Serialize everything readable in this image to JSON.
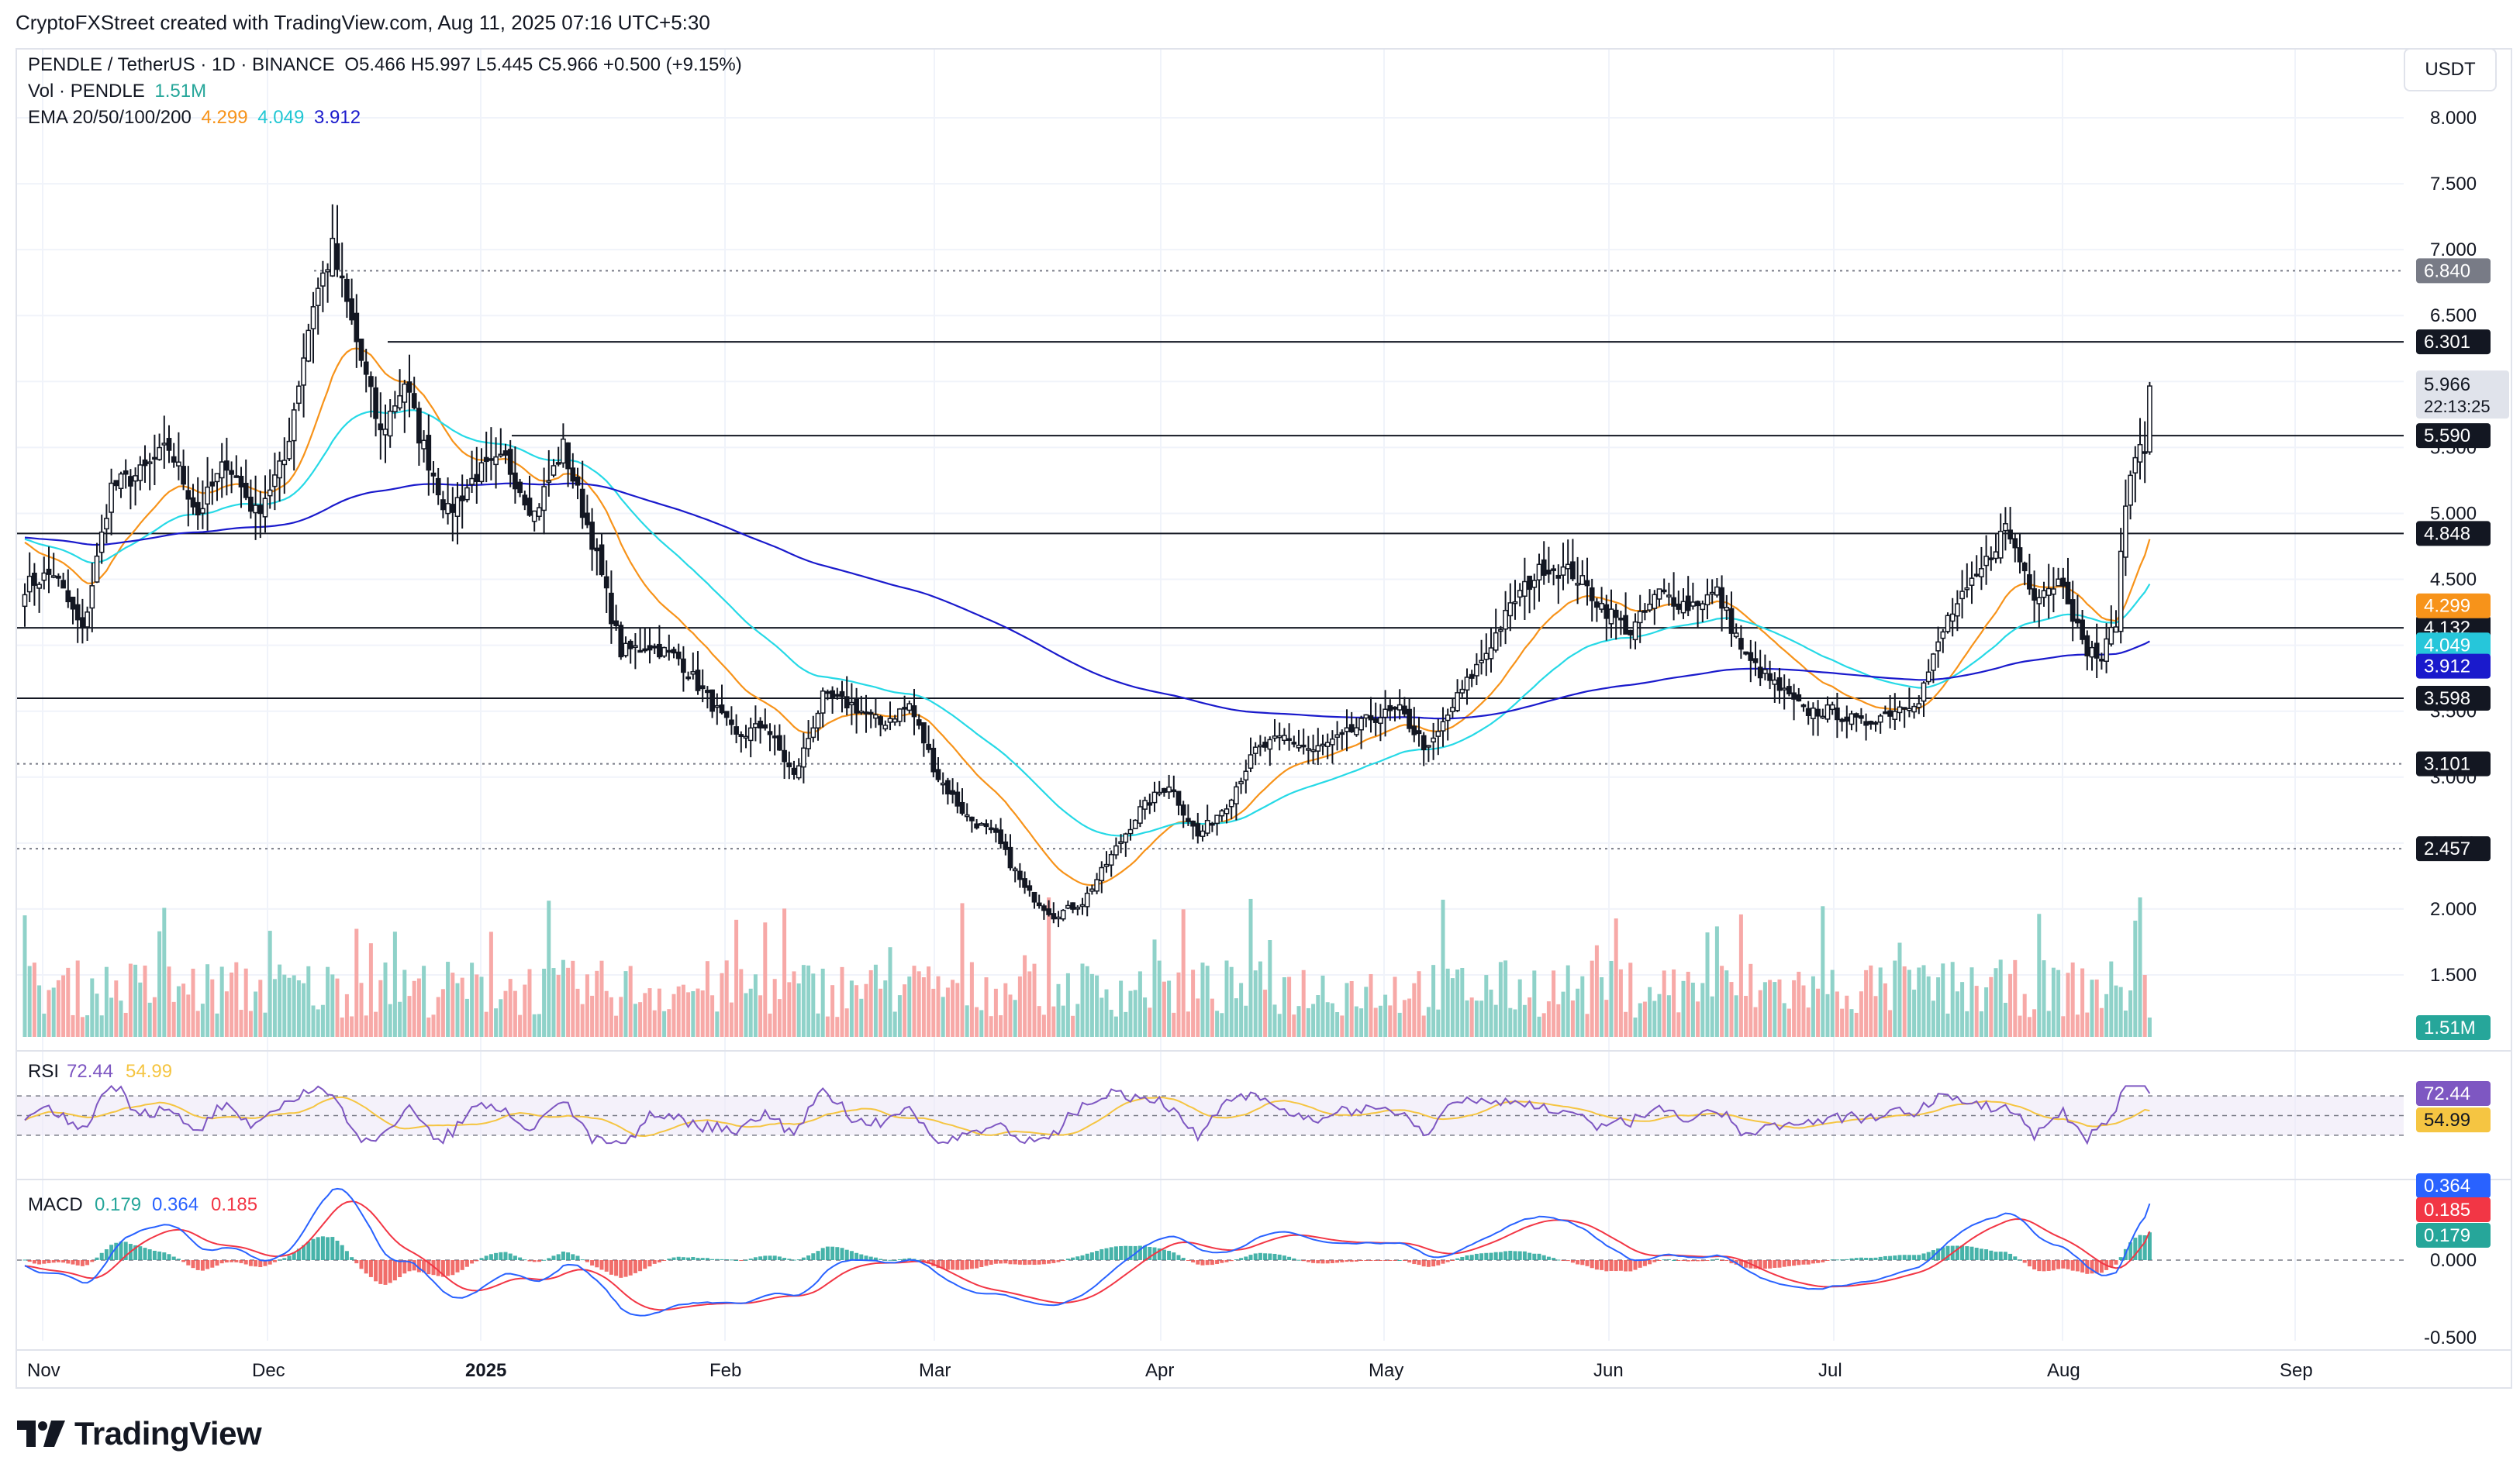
{
  "credit": "CryptoFXStreet created with TradingView.com, Aug 11, 2025 07:16 UTC+5:30",
  "currency_button": "USDT",
  "legend": {
    "title": "PENDLE / TetherUS · 1D · BINANCE",
    "ohlc": "O5.466  H5.997  L5.445  C5.966  +0.500 (+9.15%)",
    "vol_label": "Vol · PENDLE",
    "vol_value": "1.51M",
    "ema_label": "EMA 20/50/100/200",
    "ema20": "4.299",
    "ema50": "4.049",
    "ema200": "3.912"
  },
  "brand": "TradingView",
  "colors": {
    "up": "#26a69a",
    "down": "#ef5350",
    "vol_up": "#8fd2c9",
    "vol_down": "#f7a9a7",
    "ema20": "#f7931a",
    "ema50": "#26d9e6",
    "ema200": "#1a1acc",
    "rsi": "#7e57c2",
    "rsi_ma": "#f5c542",
    "macd": "#2962ff",
    "signal": "#f23645",
    "level_line": "#131722"
  },
  "chart_data": {
    "type": "candlestick",
    "symbol": "PENDLE / TetherUS",
    "timeframe": "1D",
    "exchange": "BINANCE",
    "price_axis_ticks": [
      "8.000",
      "7.500",
      "7.000",
      "6.500",
      "6.000",
      "5.500",
      "5.000",
      "4.500",
      "4.000",
      "3.500",
      "3.000",
      "2.500",
      "2.000",
      "1.500"
    ],
    "x_axis_labels": [
      "Nov",
      "Dec",
      "2025",
      "Feb",
      "Mar",
      "Apr",
      "May",
      "Jun",
      "Jul",
      "Aug",
      "Sep"
    ],
    "horizontal_levels": [
      {
        "value": 6.84,
        "label": "6.840",
        "style": "dotted"
      },
      {
        "value": 6.301,
        "label": "6.301",
        "style": "solid"
      },
      {
        "value": 5.59,
        "label": "5.590",
        "style": "solid"
      },
      {
        "value": 4.848,
        "label": "4.848",
        "style": "solid"
      },
      {
        "value": 4.132,
        "label": "4.132",
        "style": "solid"
      },
      {
        "value": 3.598,
        "label": "3.598",
        "style": "solid"
      },
      {
        "value": 3.101,
        "label": "3.101",
        "style": "dotted"
      },
      {
        "value": 2.457,
        "label": "2.457",
        "style": "dotted"
      }
    ],
    "last_price": {
      "value": 5.966,
      "label": "5.966",
      "countdown": "22:13:25"
    },
    "ema_badges": [
      {
        "name": "EMA 20",
        "value": 4.299,
        "label": "4.299"
      },
      {
        "name": "EMA 50",
        "value": 4.049,
        "label": "4.049"
      },
      {
        "name": "EMA 200",
        "value": 3.912,
        "label": "3.912"
      }
    ],
    "close_anchors": [
      [
        0,
        4.45
      ],
      [
        6,
        4.55
      ],
      [
        12,
        4.1
      ],
      [
        18,
        5.2
      ],
      [
        24,
        5.3
      ],
      [
        30,
        5.5
      ],
      [
        36,
        5.0
      ],
      [
        42,
        5.4
      ],
      [
        48,
        5.0
      ],
      [
        54,
        5.4
      ],
      [
        60,
        6.6
      ],
      [
        64,
        7.0
      ],
      [
        69,
        6.3
      ],
      [
        74,
        5.6
      ],
      [
        79,
        6.0
      ],
      [
        82,
        5.6
      ],
      [
        88,
        5.0
      ],
      [
        94,
        5.3
      ],
      [
        100,
        5.4
      ],
      [
        106,
        5.0
      ],
      [
        112,
        5.5
      ],
      [
        118,
        4.8
      ],
      [
        124,
        3.95
      ],
      [
        130,
        4.0
      ],
      [
        136,
        3.9
      ],
      [
        142,
        3.6
      ],
      [
        148,
        3.3
      ],
      [
        154,
        3.4
      ],
      [
        160,
        3.0
      ],
      [
        166,
        3.6
      ],
      [
        172,
        3.55
      ],
      [
        178,
        3.4
      ],
      [
        184,
        3.55
      ],
      [
        190,
        3.0
      ],
      [
        196,
        2.7
      ],
      [
        202,
        2.55
      ],
      [
        208,
        2.15
      ],
      [
        214,
        1.95
      ],
      [
        220,
        2.05
      ],
      [
        226,
        2.4
      ],
      [
        232,
        2.75
      ],
      [
        238,
        2.95
      ],
      [
        244,
        2.55
      ],
      [
        250,
        2.8
      ],
      [
        256,
        3.2
      ],
      [
        262,
        3.3
      ],
      [
        268,
        3.2
      ],
      [
        274,
        3.3
      ],
      [
        280,
        3.45
      ],
      [
        286,
        3.5
      ],
      [
        292,
        3.2
      ],
      [
        298,
        3.6
      ],
      [
        304,
        3.95
      ],
      [
        310,
        4.35
      ],
      [
        316,
        4.6
      ],
      [
        322,
        4.55
      ],
      [
        328,
        4.3
      ],
      [
        334,
        4.1
      ],
      [
        340,
        4.4
      ],
      [
        346,
        4.3
      ],
      [
        352,
        4.4
      ],
      [
        358,
        3.9
      ],
      [
        364,
        3.7
      ],
      [
        370,
        3.5
      ],
      [
        376,
        3.5
      ],
      [
        382,
        3.4
      ],
      [
        388,
        3.5
      ],
      [
        394,
        3.6
      ],
      [
        400,
        4.2
      ],
      [
        406,
        4.5
      ],
      [
        412,
        4.9
      ],
      [
        418,
        4.4
      ],
      [
        424,
        4.5
      ],
      [
        428,
        4.0
      ],
      [
        432,
        3.9
      ],
      [
        435,
        4.2
      ],
      [
        437,
        5.1
      ],
      [
        440,
        5.6
      ],
      [
        442,
        5.966
      ]
    ],
    "volume_label": "1.51M",
    "rsi": {
      "label": "RSI",
      "value": 72.44,
      "value_label": "72.44",
      "ma": 54.99,
      "ma_label": "54.99",
      "upper": 70,
      "middle": 50,
      "lower": 30
    },
    "macd": {
      "label": "MACD",
      "histogram": 0.179,
      "macd": 0.364,
      "signal": 0.185,
      "histogram_label": "0.179",
      "macd_label": "0.364",
      "signal_label": "0.185",
      "axis_ticks": [
        "0.000",
        "-0.500"
      ]
    }
  }
}
